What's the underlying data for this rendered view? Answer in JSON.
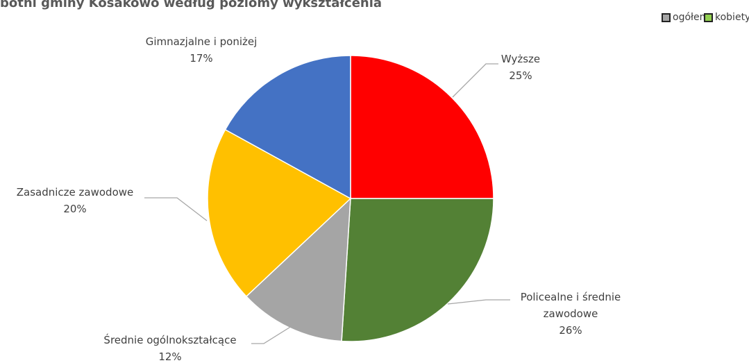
{
  "chart_data": {
    "type": "pie",
    "title": "botni gminy Kosakowo według poziomy wykształcenia",
    "legend": [
      {
        "name": "ogółem",
        "color": "#a5a5a5"
      },
      {
        "name": "kobiety",
        "color": "#92d050"
      }
    ],
    "categories": [
      "Wyższe",
      "Policealne i średnie zawodowe",
      "Średnie ogólnokształcące",
      "Zasadnicze zawodowe",
      "Gimnazjalne i poniżej"
    ],
    "values": [
      25,
      26,
      12,
      20,
      17
    ],
    "value_labels": [
      "25%",
      "26%",
      "12%",
      "20%",
      "17%"
    ],
    "colors": [
      "#ff0000",
      "#538135",
      "#a5a5a5",
      "#ffc000",
      "#4472c4"
    ]
  }
}
